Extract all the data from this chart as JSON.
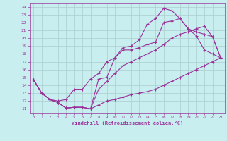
{
  "xlabel": "Windchill (Refroidissement éolien,°C)",
  "bg_color": "#c8eef0",
  "line_color": "#993399",
  "grid_color": "#aacccc",
  "xlim": [
    -0.5,
    23.5
  ],
  "ylim": [
    10.5,
    24.5
  ],
  "xticks": [
    0,
    1,
    2,
    3,
    4,
    5,
    6,
    7,
    8,
    9,
    10,
    11,
    12,
    13,
    14,
    15,
    16,
    17,
    18,
    19,
    20,
    21,
    22,
    23
  ],
  "yticks": [
    11,
    12,
    13,
    14,
    15,
    16,
    17,
    18,
    19,
    20,
    21,
    22,
    23,
    24
  ],
  "line_bottom_x": [
    0,
    1,
    2,
    3,
    4,
    5,
    6,
    7,
    8,
    9,
    10,
    11,
    12,
    13,
    14,
    15,
    16,
    17,
    18,
    19,
    20,
    21,
    22,
    23
  ],
  "line_bottom_y": [
    14.7,
    13.0,
    12.2,
    11.8,
    11.1,
    11.2,
    11.2,
    11.0,
    11.5,
    12.0,
    12.2,
    12.5,
    12.8,
    13.0,
    13.2,
    13.5,
    14.0,
    14.5,
    15.0,
    15.5,
    16.0,
    16.5,
    17.0,
    17.5
  ],
  "line_mid_x": [
    0,
    1,
    2,
    3,
    4,
    5,
    6,
    7,
    8,
    9,
    10,
    11,
    12,
    13,
    14,
    15,
    16,
    17,
    18,
    19,
    20,
    21,
    22,
    23
  ],
  "line_mid_y": [
    14.7,
    13.0,
    12.2,
    11.8,
    11.1,
    11.2,
    11.2,
    11.0,
    13.5,
    14.5,
    15.5,
    16.5,
    17.0,
    17.5,
    18.0,
    18.5,
    19.2,
    20.0,
    20.5,
    20.8,
    21.2,
    21.5,
    20.2,
    17.5
  ],
  "line_upper_x": [
    0,
    1,
    2,
    3,
    4,
    5,
    6,
    7,
    8,
    9,
    10,
    11,
    12,
    13,
    14,
    15,
    16,
    17,
    18,
    19,
    20,
    21,
    22,
    23
  ],
  "line_upper_y": [
    14.7,
    13.0,
    12.2,
    12.0,
    12.2,
    13.5,
    13.5,
    14.8,
    15.5,
    17.0,
    17.5,
    18.5,
    18.5,
    18.8,
    19.2,
    19.5,
    22.0,
    22.2,
    22.5,
    21.2,
    20.3,
    18.5,
    18.0,
    17.5
  ],
  "line_spike_x": [
    0,
    1,
    2,
    3,
    4,
    5,
    6,
    7,
    8,
    9,
    10,
    11,
    12,
    13,
    14,
    15,
    16,
    17,
    18,
    19,
    20,
    21,
    22,
    23
  ],
  "line_spike_y": [
    14.7,
    13.0,
    12.2,
    11.8,
    11.1,
    11.2,
    11.2,
    11.0,
    14.8,
    15.0,
    17.5,
    18.8,
    19.0,
    19.8,
    21.8,
    22.5,
    23.8,
    23.5,
    22.5,
    21.2,
    20.8,
    20.5,
    20.2,
    17.5
  ]
}
